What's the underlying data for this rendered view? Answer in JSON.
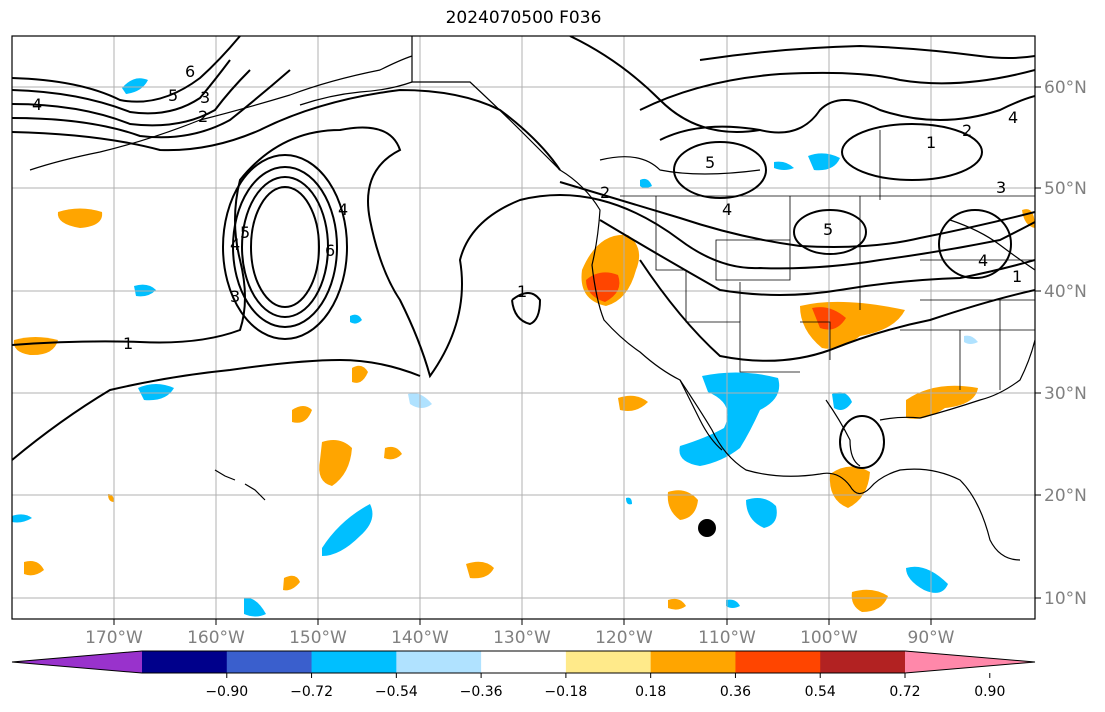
{
  "title": "2024070500 F036",
  "map": {
    "lat_ticks": [
      "60°N",
      "50°N",
      "40°N",
      "30°N",
      "20°N",
      "10°N"
    ],
    "lon_ticks": [
      "170°W",
      "160°W",
      "150°W",
      "140°W",
      "130°W",
      "120°W",
      "110°W",
      "100°W",
      "90°W"
    ],
    "contour_labels": [
      "6",
      "5",
      "4",
      "3",
      "2",
      "1",
      "4",
      "6",
      "5",
      "4",
      "3",
      "2",
      "1",
      "5",
      "5",
      "4",
      "3",
      "2",
      "1",
      "4",
      "4",
      "1"
    ],
    "marker": "storm-position"
  },
  "colorbar": {
    "tick_labels": [
      "−0.90",
      "−0.72",
      "−0.54",
      "−0.36",
      "−0.18",
      "0.18",
      "0.36",
      "0.54",
      "0.72",
      "0.90"
    ],
    "colors": [
      "#9932cc",
      "#00008b",
      "#3a5fcd",
      "#00bfff",
      "#b0e2ff",
      "#ffffff",
      "#ffea8a",
      "#ffa500",
      "#ff4500",
      "#b22222",
      "#ff88aa"
    ]
  }
}
